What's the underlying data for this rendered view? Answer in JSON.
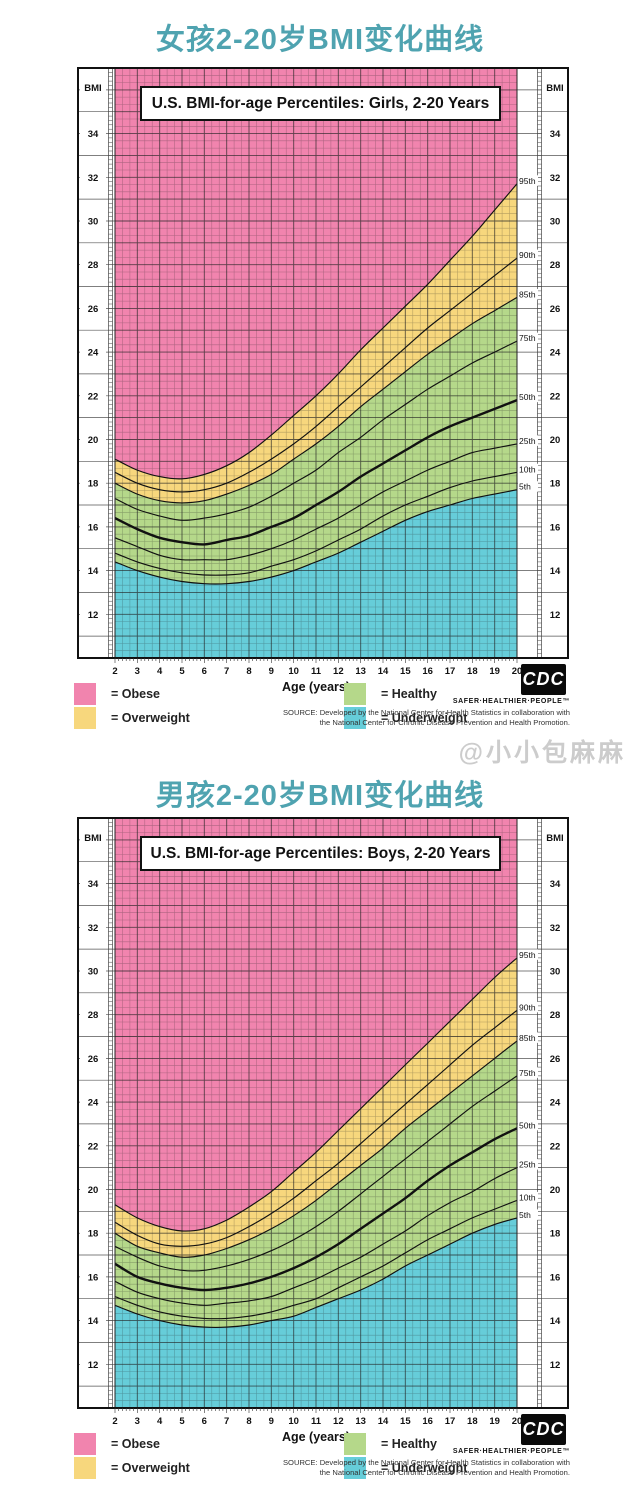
{
  "page": {
    "watermark": "@小小包麻麻"
  },
  "colors": {
    "section_title_teal": "#4FA3B0",
    "obese_pink": "#F184AE",
    "overweight_yellow": "#F7D77D",
    "healthy_green": "#B5D88A",
    "underweight_cyan": "#66CDD9",
    "curve_black": "#111111",
    "watermark_gray": "#CCCCCC"
  },
  "legend": {
    "items": [
      {
        "label": "= Obese",
        "color": "#F184AE"
      },
      {
        "label": "= Overweight",
        "color": "#F7D77D"
      },
      {
        "label": "= Healthy",
        "color": "#B5D88A"
      },
      {
        "label": "= Underweight",
        "color": "#66CDD9"
      }
    ]
  },
  "footer": {
    "cdc": "CDC",
    "tagline": "SAFER·HEALTHIER·PEOPLE™",
    "source_line1": "SOURCE: Developed by the National Center for Health Statistics in collaboration with",
    "source_line2": "the National Center for Chronic Disease Prevention and Health Promotion."
  },
  "chart_data": [
    {
      "type": "area",
      "section_title": "女孩2-20岁BMI变化曲线",
      "title": "U.S. BMI-for-age Percentiles: Girls, 2-20 Years",
      "xlabel": "Age (years)",
      "ylabel": "BMI",
      "xlim": [
        2,
        20
      ],
      "ylim": [
        10,
        37
      ],
      "xticks": [
        2,
        3,
        4,
        5,
        6,
        7,
        8,
        9,
        10,
        11,
        12,
        13,
        14,
        15,
        16,
        17,
        18,
        19,
        20
      ],
      "yticks": [
        12,
        14,
        16,
        18,
        20,
        22,
        24,
        26,
        28,
        30,
        32,
        34
      ],
      "x": [
        2,
        3,
        4,
        5,
        6,
        7,
        8,
        9,
        10,
        11,
        12,
        13,
        14,
        15,
        16,
        17,
        18,
        19,
        20
      ],
      "zones": {
        "obese": "above 95th percentile",
        "overweight": "85th to 95th percentile",
        "healthy": "5th to 85th percentile",
        "underweight": "below 5th percentile"
      },
      "series": [
        {
          "name": "5th",
          "values": [
            14.4,
            14.0,
            13.7,
            13.5,
            13.4,
            13.4,
            13.5,
            13.7,
            14.0,
            14.4,
            14.8,
            15.3,
            15.8,
            16.3,
            16.7,
            17.0,
            17.3,
            17.5,
            17.7
          ]
        },
        {
          "name": "10th",
          "values": [
            14.8,
            14.4,
            14.1,
            13.9,
            13.8,
            13.8,
            13.9,
            14.2,
            14.5,
            14.9,
            15.4,
            15.9,
            16.5,
            17.0,
            17.4,
            17.8,
            18.1,
            18.3,
            18.5
          ]
        },
        {
          "name": "25th",
          "values": [
            15.5,
            15.1,
            14.7,
            14.5,
            14.5,
            14.5,
            14.7,
            15.0,
            15.4,
            15.9,
            16.4,
            17.0,
            17.6,
            18.1,
            18.6,
            19.0,
            19.4,
            19.6,
            19.8
          ]
        },
        {
          "name": "50th",
          "values": [
            16.4,
            15.9,
            15.5,
            15.3,
            15.2,
            15.4,
            15.6,
            16.0,
            16.4,
            17.0,
            17.6,
            18.3,
            18.9,
            19.5,
            20.1,
            20.6,
            21.0,
            21.4,
            21.8
          ]
        },
        {
          "name": "75th",
          "values": [
            17.3,
            16.8,
            16.5,
            16.3,
            16.4,
            16.6,
            16.9,
            17.4,
            18.0,
            18.6,
            19.4,
            20.1,
            20.9,
            21.6,
            22.3,
            22.9,
            23.5,
            24.0,
            24.5
          ]
        },
        {
          "name": "85th",
          "values": [
            18.0,
            17.5,
            17.2,
            17.1,
            17.2,
            17.5,
            17.9,
            18.4,
            19.1,
            19.8,
            20.6,
            21.5,
            22.3,
            23.1,
            23.9,
            24.6,
            25.3,
            25.9,
            26.5
          ]
        },
        {
          "name": "90th",
          "values": [
            18.5,
            18.0,
            17.7,
            17.6,
            17.7,
            18.0,
            18.5,
            19.1,
            19.8,
            20.6,
            21.5,
            22.4,
            23.3,
            24.2,
            25.1,
            25.9,
            26.7,
            27.5,
            28.3
          ]
        },
        {
          "name": "95th",
          "values": [
            19.1,
            18.6,
            18.3,
            18.2,
            18.4,
            18.8,
            19.4,
            20.2,
            21.1,
            22.0,
            23.0,
            24.1,
            25.1,
            26.1,
            27.1,
            28.2,
            29.3,
            30.5,
            31.7
          ]
        }
      ],
      "right_labels": [
        "95th",
        "90th",
        "85th",
        "75th",
        "50th",
        "25th",
        "10th",
        "5th"
      ]
    },
    {
      "type": "area",
      "section_title": "男孩2-20岁BMI变化曲线",
      "title": "U.S. BMI-for-age Percentiles: Boys, 2-20 Years",
      "xlabel": "Age (years)",
      "ylabel": "BMI",
      "xlim": [
        2,
        20
      ],
      "ylim": [
        10,
        37
      ],
      "xticks": [
        2,
        3,
        4,
        5,
        6,
        7,
        8,
        9,
        10,
        11,
        12,
        13,
        14,
        15,
        16,
        17,
        18,
        19,
        20
      ],
      "yticks": [
        12,
        14,
        16,
        18,
        20,
        22,
        24,
        26,
        28,
        30,
        32,
        34
      ],
      "x": [
        2,
        3,
        4,
        5,
        6,
        7,
        8,
        9,
        10,
        11,
        12,
        13,
        14,
        15,
        16,
        17,
        18,
        19,
        20
      ],
      "zones": {
        "obese": "above 95th percentile",
        "overweight": "85th to 95th percentile",
        "healthy": "5th to 85th percentile",
        "underweight": "below 5th percentile"
      },
      "series": [
        {
          "name": "5th",
          "values": [
            14.7,
            14.3,
            14.0,
            13.8,
            13.7,
            13.7,
            13.8,
            14.0,
            14.2,
            14.6,
            15.0,
            15.4,
            15.9,
            16.5,
            17.0,
            17.5,
            18.0,
            18.4,
            18.7
          ]
        },
        {
          "name": "10th",
          "values": [
            15.1,
            14.7,
            14.4,
            14.2,
            14.1,
            14.1,
            14.2,
            14.4,
            14.7,
            15.0,
            15.5,
            16.0,
            16.5,
            17.1,
            17.7,
            18.2,
            18.7,
            19.1,
            19.5
          ]
        },
        {
          "name": "25th",
          "values": [
            15.8,
            15.3,
            15.0,
            14.8,
            14.7,
            14.8,
            14.9,
            15.1,
            15.5,
            15.9,
            16.4,
            16.9,
            17.5,
            18.1,
            18.8,
            19.4,
            19.9,
            20.5,
            21.0
          ]
        },
        {
          "name": "50th",
          "values": [
            16.6,
            16.0,
            15.7,
            15.5,
            15.4,
            15.5,
            15.7,
            16.0,
            16.4,
            16.9,
            17.5,
            18.2,
            18.9,
            19.6,
            20.4,
            21.1,
            21.7,
            22.3,
            22.8
          ]
        },
        {
          "name": "75th",
          "values": [
            17.4,
            16.9,
            16.5,
            16.3,
            16.3,
            16.5,
            16.8,
            17.2,
            17.7,
            18.3,
            19.0,
            19.8,
            20.6,
            21.4,
            22.2,
            23.0,
            23.8,
            24.5,
            25.2
          ]
        },
        {
          "name": "85th",
          "values": [
            18.0,
            17.4,
            17.1,
            16.9,
            17.0,
            17.3,
            17.7,
            18.2,
            18.8,
            19.5,
            20.3,
            21.1,
            21.9,
            22.8,
            23.6,
            24.4,
            25.2,
            26.0,
            26.8
          ]
        },
        {
          "name": "90th",
          "values": [
            18.5,
            17.9,
            17.5,
            17.4,
            17.5,
            17.8,
            18.3,
            18.9,
            19.6,
            20.4,
            21.2,
            22.1,
            23.0,
            23.9,
            24.8,
            25.7,
            26.6,
            27.4,
            28.2
          ]
        },
        {
          "name": "95th",
          "values": [
            19.3,
            18.7,
            18.3,
            18.1,
            18.2,
            18.6,
            19.2,
            19.9,
            20.8,
            21.7,
            22.7,
            23.7,
            24.7,
            25.7,
            26.7,
            27.7,
            28.7,
            29.7,
            30.6
          ]
        }
      ],
      "right_labels": [
        "95th",
        "90th",
        "85th",
        "75th",
        "50th",
        "25th",
        "10th",
        "5th"
      ]
    }
  ]
}
